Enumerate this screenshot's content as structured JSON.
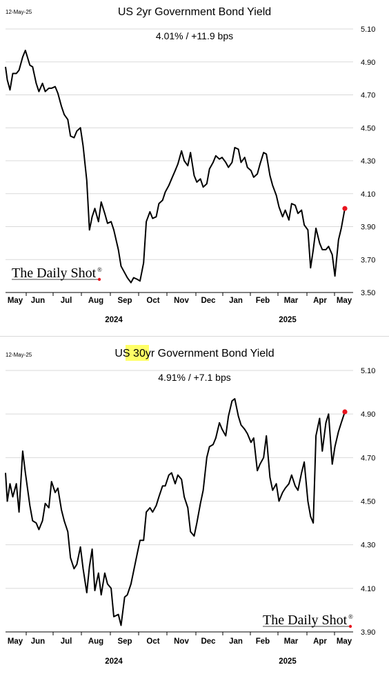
{
  "chart_data": [
    {
      "type": "line",
      "date_label": "12-May-25",
      "title": "US 2yr Government Bond Yield",
      "title_highlight": "",
      "subtitle": "4.01%  /  +11.9 bps",
      "ylim": [
        3.5,
        5.1
      ],
      "yticks": [
        "5.10",
        "4.90",
        "4.70",
        "4.50",
        "4.30",
        "4.10",
        "3.90",
        "3.70",
        "3.50"
      ],
      "grid": true,
      "months": [
        "May",
        "Jun",
        "Jul",
        "Aug",
        "Sep",
        "Oct",
        "Nov",
        "Dec",
        "Jan",
        "Feb",
        "Mar",
        "Apr",
        "May"
      ],
      "years": [
        "2024",
        "2025"
      ],
      "logo": "The Daily Shot",
      "last_point_color": "#e8141e",
      "line_color": "#000000",
      "x": [
        "2024-05-01",
        "2024-05-03",
        "2024-05-06",
        "2024-05-09",
        "2024-05-13",
        "2024-05-16",
        "2024-05-20",
        "2024-05-23",
        "2024-05-28",
        "2024-05-31",
        "2024-06-04",
        "2024-06-07",
        "2024-06-11",
        "2024-06-14",
        "2024-06-18",
        "2024-06-21",
        "2024-06-25",
        "2024-06-28",
        "2024-07-02",
        "2024-07-05",
        "2024-07-09",
        "2024-07-12",
        "2024-07-16",
        "2024-07-19",
        "2024-07-23",
        "2024-07-26",
        "2024-07-30",
        "2024-08-02",
        "2024-08-05",
        "2024-08-08",
        "2024-08-12",
        "2024-08-15",
        "2024-08-19",
        "2024-08-22",
        "2024-08-26",
        "2024-08-29",
        "2024-09-03",
        "2024-09-06",
        "2024-09-10",
        "2024-09-13",
        "2024-09-17",
        "2024-09-20",
        "2024-09-24",
        "2024-09-27",
        "2024-10-01",
        "2024-10-04",
        "2024-10-08",
        "2024-10-11",
        "2024-10-15",
        "2024-10-18",
        "2024-10-22",
        "2024-10-25",
        "2024-10-29",
        "2024-11-01",
        "2024-11-05",
        "2024-11-08",
        "2024-11-12",
        "2024-11-15",
        "2024-11-19",
        "2024-11-22",
        "2024-11-26",
        "2024-11-29",
        "2024-12-03",
        "2024-12-06",
        "2024-12-10",
        "2024-12-13",
        "2024-12-17",
        "2024-12-20",
        "2024-12-24",
        "2024-12-27",
        "2024-12-31",
        "2025-01-03",
        "2025-01-07",
        "2025-01-10",
        "2025-01-14",
        "2025-01-17",
        "2025-01-21",
        "2025-01-24",
        "2025-01-28",
        "2025-01-31",
        "2025-02-04",
        "2025-02-07",
        "2025-02-11",
        "2025-02-14",
        "2025-02-18",
        "2025-02-21",
        "2025-02-25",
        "2025-02-28",
        "2025-03-04",
        "2025-03-07",
        "2025-03-11",
        "2025-03-14",
        "2025-03-18",
        "2025-03-21",
        "2025-03-25",
        "2025-03-28",
        "2025-04-01",
        "2025-04-04",
        "2025-04-07",
        "2025-04-10",
        "2025-04-14",
        "2025-04-17",
        "2025-04-21",
        "2025-04-24",
        "2025-04-28",
        "2025-05-01",
        "2025-05-05",
        "2025-05-08",
        "2025-05-12"
      ],
      "values": [
        4.87,
        4.79,
        4.73,
        4.83,
        4.83,
        4.85,
        4.93,
        4.97,
        4.88,
        4.87,
        4.77,
        4.72,
        4.77,
        4.72,
        4.74,
        4.74,
        4.75,
        4.71,
        4.63,
        4.58,
        4.55,
        4.45,
        4.44,
        4.48,
        4.5,
        4.39,
        4.18,
        3.88,
        3.96,
        4.01,
        3.93,
        4.05,
        3.98,
        3.92,
        3.93,
        3.88,
        3.76,
        3.66,
        3.62,
        3.59,
        3.56,
        3.59,
        3.58,
        3.57,
        3.68,
        3.93,
        3.99,
        3.95,
        3.96,
        4.04,
        4.06,
        4.11,
        4.15,
        4.19,
        4.24,
        4.28,
        4.36,
        4.3,
        4.27,
        4.35,
        4.21,
        4.17,
        4.19,
        4.14,
        4.16,
        4.25,
        4.29,
        4.33,
        4.31,
        4.32,
        4.29,
        4.26,
        4.29,
        4.38,
        4.37,
        4.29,
        4.32,
        4.26,
        4.24,
        4.2,
        4.22,
        4.28,
        4.35,
        4.34,
        4.21,
        4.15,
        4.09,
        4.02,
        3.96,
        4.0,
        3.94,
        4.04,
        4.03,
        3.98,
        4.0,
        3.91,
        3.88,
        3.65,
        3.76,
        3.89,
        3.8,
        3.76,
        3.76,
        3.78,
        3.73,
        3.6,
        3.82,
        3.89,
        4.01
      ]
    },
    {
      "type": "line",
      "date_label": "12-May-25",
      "title": "US 30yr Government Bond Yield",
      "title_before": "US ",
      "title_highlight": "30yr",
      "title_after": " Government Bond Yield",
      "subtitle": "4.91%  /  +7.1 bps",
      "ylim": [
        3.9,
        5.1
      ],
      "yticks": [
        "5.10",
        "4.90",
        "4.70",
        "4.50",
        "4.30",
        "4.10",
        "3.90"
      ],
      "grid": true,
      "months": [
        "May",
        "Jun",
        "Jul",
        "Aug",
        "Sep",
        "Oct",
        "Nov",
        "Dec",
        "Jan",
        "Feb",
        "Mar",
        "Apr",
        "May"
      ],
      "years": [
        "2024",
        "2025"
      ],
      "logo": "The Daily Shot",
      "last_point_color": "#e8141e",
      "line_color": "#000000",
      "x": [
        "2024-05-01",
        "2024-05-03",
        "2024-05-06",
        "2024-05-09",
        "2024-05-13",
        "2024-05-16",
        "2024-05-20",
        "2024-05-23",
        "2024-05-28",
        "2024-05-31",
        "2024-06-04",
        "2024-06-07",
        "2024-06-11",
        "2024-06-14",
        "2024-06-18",
        "2024-06-21",
        "2024-06-25",
        "2024-06-28",
        "2024-07-02",
        "2024-07-05",
        "2024-07-09",
        "2024-07-12",
        "2024-07-16",
        "2024-07-19",
        "2024-07-23",
        "2024-07-26",
        "2024-07-30",
        "2024-08-02",
        "2024-08-05",
        "2024-08-08",
        "2024-08-12",
        "2024-08-15",
        "2024-08-19",
        "2024-08-22",
        "2024-08-26",
        "2024-08-29",
        "2024-09-03",
        "2024-09-06",
        "2024-09-10",
        "2024-09-13",
        "2024-09-17",
        "2024-09-20",
        "2024-09-24",
        "2024-09-27",
        "2024-10-01",
        "2024-10-04",
        "2024-10-08",
        "2024-10-11",
        "2024-10-15",
        "2024-10-18",
        "2024-10-22",
        "2024-10-25",
        "2024-10-29",
        "2024-11-01",
        "2024-11-05",
        "2024-11-08",
        "2024-11-12",
        "2024-11-15",
        "2024-11-19",
        "2024-11-22",
        "2024-11-26",
        "2024-11-29",
        "2024-12-03",
        "2024-12-06",
        "2024-12-10",
        "2024-12-13",
        "2024-12-17",
        "2024-12-20",
        "2024-12-24",
        "2024-12-27",
        "2024-12-31",
        "2025-01-03",
        "2025-01-07",
        "2025-01-10",
        "2025-01-14",
        "2025-01-17",
        "2025-01-21",
        "2025-01-24",
        "2025-01-28",
        "2025-01-31",
        "2025-02-04",
        "2025-02-07",
        "2025-02-11",
        "2025-02-14",
        "2025-02-18",
        "2025-02-21",
        "2025-02-25",
        "2025-02-28",
        "2025-03-04",
        "2025-03-07",
        "2025-03-11",
        "2025-03-14",
        "2025-03-18",
        "2025-03-21",
        "2025-03-25",
        "2025-03-28",
        "2025-04-01",
        "2025-04-04",
        "2025-04-07",
        "2025-04-10",
        "2025-04-14",
        "2025-04-17",
        "2025-04-21",
        "2025-04-24",
        "2025-04-28",
        "2025-05-01",
        "2025-05-05",
        "2025-05-08",
        "2025-05-12"
      ],
      "values": [
        4.63,
        4.5,
        4.58,
        4.52,
        4.58,
        4.45,
        4.73,
        4.63,
        4.48,
        4.41,
        4.4,
        4.37,
        4.41,
        4.49,
        4.47,
        4.59,
        4.54,
        4.56,
        4.46,
        4.41,
        4.36,
        4.24,
        4.19,
        4.21,
        4.29,
        4.19,
        4.08,
        4.2,
        4.28,
        4.09,
        4.17,
        4.07,
        4.17,
        4.12,
        4.1,
        3.97,
        3.98,
        3.93,
        4.06,
        4.07,
        4.12,
        4.18,
        4.26,
        4.32,
        4.32,
        4.45,
        4.47,
        4.45,
        4.48,
        4.52,
        4.57,
        4.57,
        4.62,
        4.63,
        4.58,
        4.62,
        4.6,
        4.52,
        4.47,
        4.36,
        4.34,
        4.4,
        4.49,
        4.55,
        4.7,
        4.75,
        4.76,
        4.79,
        4.86,
        4.83,
        4.8,
        4.89,
        4.96,
        4.97,
        4.89,
        4.85,
        4.83,
        4.81,
        4.77,
        4.79,
        4.64,
        4.67,
        4.7,
        4.8,
        4.61,
        4.55,
        4.58,
        4.5,
        4.54,
        4.56,
        4.58,
        4.62,
        4.57,
        4.55,
        4.63,
        4.68,
        4.5,
        4.43,
        4.4,
        4.8,
        4.88,
        4.73,
        4.86,
        4.9,
        4.67,
        4.75,
        4.82,
        4.86,
        4.91
      ]
    }
  ]
}
